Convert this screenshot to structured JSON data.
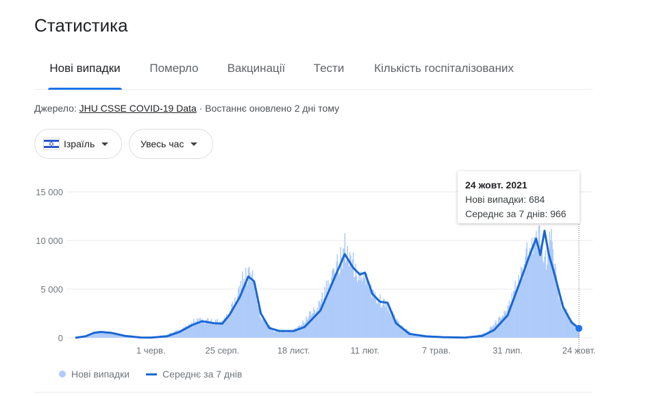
{
  "page": {
    "title": "Статистика"
  },
  "tabs": [
    {
      "label": "Нові випадки",
      "active": true
    },
    {
      "label": "Померло",
      "active": false
    },
    {
      "label": "Вакцинації",
      "active": false
    },
    {
      "label": "Тести",
      "active": false
    },
    {
      "label": "Кількість госпіталізованих",
      "active": false
    }
  ],
  "source": {
    "prefix": "Джерело: ",
    "link": "JHU CSSE COVID-19 Data",
    "suffix": " · Востаннє оновлено 2 дні тому"
  },
  "filters": {
    "country": {
      "label": "Ізраїль",
      "icon": "israel-flag-icon"
    },
    "period": {
      "label": "Увесь час",
      "icon": "chevron-down-icon"
    }
  },
  "colors": {
    "accent": "#1a73e8",
    "bars": "#aecbfa",
    "line": "#1967d2",
    "grid": "#e8eaed"
  },
  "tooltip": {
    "date": "24 жовт. 2021",
    "line1": "Нові випадки: 684",
    "line2": "Середнє за 7 днів: 966"
  },
  "chart_data": {
    "type": "bar",
    "ylim": [
      0,
      15000
    ],
    "yticks": [
      0,
      5000,
      10000,
      15000
    ],
    "ytick_labels": [
      "0",
      "5 000",
      "10 000",
      "15 000"
    ],
    "xticks": [
      {
        "x": "2020-06-01",
        "label": "1 черв."
      },
      {
        "x": "2020-08-25",
        "label": "25 серп."
      },
      {
        "x": "2020-11-18",
        "label": "18 лист."
      },
      {
        "x": "2021-02-11",
        "label": "11 лют."
      },
      {
        "x": "2021-05-07",
        "label": "7 трав."
      },
      {
        "x": "2021-07-31",
        "label": "31 лип."
      },
      {
        "x": "2021-10-24",
        "label": "24 жовт."
      }
    ],
    "x_range": [
      "2020-03-03",
      "2021-10-24"
    ],
    "legend": "bottom-left",
    "series": [
      {
        "name": "Нові випадки",
        "kind": "bars",
        "anchors": [
          [
            "2020-03-03",
            20
          ],
          [
            "2020-03-20",
            200
          ],
          [
            "2020-04-01",
            650
          ],
          [
            "2020-04-20",
            450
          ],
          [
            "2020-05-10",
            60
          ],
          [
            "2020-05-31",
            40
          ],
          [
            "2020-06-20",
            300
          ],
          [
            "2020-07-10",
            1000
          ],
          [
            "2020-07-25",
            1800
          ],
          [
            "2020-08-10",
            1700
          ],
          [
            "2020-08-25",
            1600
          ],
          [
            "2020-09-05",
            3000
          ],
          [
            "2020-09-18",
            6000
          ],
          [
            "2020-09-28",
            6800
          ],
          [
            "2020-10-10",
            2000
          ],
          [
            "2020-10-25",
            700
          ],
          [
            "2020-11-10",
            600
          ],
          [
            "2020-11-25",
            1200
          ],
          [
            "2020-12-15",
            3000
          ],
          [
            "2021-01-05",
            6500
          ],
          [
            "2021-01-18",
            9200
          ],
          [
            "2021-02-01",
            7000
          ],
          [
            "2021-02-11",
            6000
          ],
          [
            "2021-02-25",
            4200
          ],
          [
            "2021-03-10",
            3200
          ],
          [
            "2021-03-25",
            1200
          ],
          [
            "2021-04-10",
            300
          ],
          [
            "2021-05-07",
            80
          ],
          [
            "2021-06-01",
            20
          ],
          [
            "2021-06-20",
            150
          ],
          [
            "2021-07-05",
            500
          ],
          [
            "2021-07-20",
            1800
          ],
          [
            "2021-07-31",
            3000
          ],
          [
            "2021-08-15",
            6500
          ],
          [
            "2021-08-28",
            9500
          ],
          [
            "2021-09-08",
            10500
          ],
          [
            "2021-09-14",
            8000
          ],
          [
            "2021-09-20",
            11000
          ],
          [
            "2021-10-01",
            4000
          ],
          [
            "2021-10-12",
            2000
          ],
          [
            "2021-10-24",
            684
          ]
        ]
      },
      {
        "name": "Середнє за 7 днів",
        "kind": "line",
        "points": [
          [
            "2020-03-03",
            0
          ],
          [
            "2020-03-15",
            150
          ],
          [
            "2020-03-25",
            500
          ],
          [
            "2020-04-02",
            600
          ],
          [
            "2020-04-15",
            500
          ],
          [
            "2020-05-01",
            200
          ],
          [
            "2020-05-20",
            30
          ],
          [
            "2020-06-01",
            20
          ],
          [
            "2020-06-20",
            150
          ],
          [
            "2020-07-05",
            600
          ],
          [
            "2020-07-20",
            1300
          ],
          [
            "2020-08-01",
            1700
          ],
          [
            "2020-08-15",
            1500
          ],
          [
            "2020-08-25",
            1450
          ],
          [
            "2020-09-03",
            2400
          ],
          [
            "2020-09-15",
            4200
          ],
          [
            "2020-09-25",
            6300
          ],
          [
            "2020-10-02",
            5800
          ],
          [
            "2020-10-10",
            2500
          ],
          [
            "2020-10-20",
            1000
          ],
          [
            "2020-11-01",
            700
          ],
          [
            "2020-11-18",
            700
          ],
          [
            "2020-12-01",
            1100
          ],
          [
            "2020-12-20",
            2800
          ],
          [
            "2021-01-05",
            6000
          ],
          [
            "2021-01-18",
            8600
          ],
          [
            "2021-01-28",
            7200
          ],
          [
            "2021-02-05",
            6500
          ],
          [
            "2021-02-11",
            6700
          ],
          [
            "2021-02-20",
            4500
          ],
          [
            "2021-03-01",
            3700
          ],
          [
            "2021-03-10",
            3600
          ],
          [
            "2021-03-20",
            1500
          ],
          [
            "2021-04-05",
            400
          ],
          [
            "2021-04-25",
            150
          ],
          [
            "2021-05-15",
            60
          ],
          [
            "2021-06-10",
            20
          ],
          [
            "2021-07-01",
            200
          ],
          [
            "2021-07-15",
            800
          ],
          [
            "2021-07-31",
            2300
          ],
          [
            "2021-08-15",
            5800
          ],
          [
            "2021-08-25",
            8200
          ],
          [
            "2021-09-03",
            10200
          ],
          [
            "2021-09-08",
            8500
          ],
          [
            "2021-09-13",
            11000
          ],
          [
            "2021-09-18",
            8600
          ],
          [
            "2021-09-25",
            6500
          ],
          [
            "2021-10-05",
            3200
          ],
          [
            "2021-10-15",
            1600
          ],
          [
            "2021-10-24",
            966
          ]
        ]
      }
    ]
  },
  "legend": {
    "bars_label": "Нові випадки",
    "line_label": "Середнє за 7 днів"
  }
}
